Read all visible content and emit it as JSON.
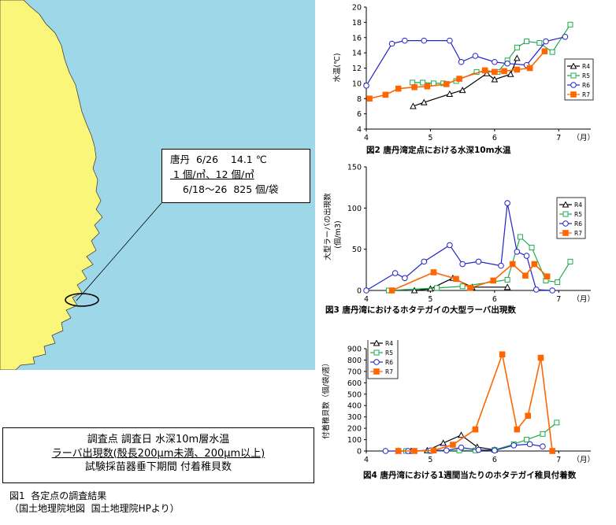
{
  "callout": {
    "line1": "唐丹  6/26    14.1 ℃",
    "line2": " 1 個/㎥、12 個/㎥",
    "line3": "    6/18～26  825 個/袋"
  },
  "legend_box": {
    "line1": "調査点   調査日   水深10m層水温",
    "line2": "ラーバ出現数(殻長200μm未満、200μm以上)",
    "line3": "試験採苗器垂下期間   付着稚貝数"
  },
  "fig1": {
    "caption": "図1  各定点の調査結果",
    "source": "（国土地理院地図  国土地理院HPより）"
  },
  "colors": {
    "sea": "#9ed8e8",
    "land": "#f9f67a",
    "R4": "#000000",
    "R5": "#1faa4a",
    "R6": "#2323c8",
    "R7": "#ff6600"
  },
  "chart_data": [
    {
      "type": "line",
      "caption": "図2  唐丹湾定点における水深10m水温",
      "ylabel": "水温(℃)",
      "xunit": "（月）",
      "xticks": [
        4,
        5,
        6,
        7
      ],
      "xlim": [
        4,
        7.5
      ],
      "yticks": [
        4,
        6,
        8,
        10,
        12,
        14,
        16,
        18,
        20
      ],
      "ylim": [
        4,
        20
      ],
      "legend_position": "right",
      "series": [
        {
          "name": "R4",
          "x": [
            4.73,
            4.9,
            5.3,
            5.5,
            5.88,
            6.0,
            6.25,
            6.35
          ],
          "y": [
            7.0,
            7.5,
            8.6,
            9.1,
            11.3,
            10.5,
            11.2,
            13.3
          ]
        },
        {
          "name": "R5",
          "x": [
            4.72,
            4.88,
            5.05,
            5.2,
            5.4,
            5.72,
            6.05,
            6.2,
            6.35,
            6.5,
            6.7,
            6.9,
            7.18
          ],
          "y": [
            10.1,
            10.1,
            10.0,
            10.0,
            10.3,
            11.5,
            11.5,
            13.0,
            14.7,
            15.5,
            15.3,
            14.1,
            17.7
          ]
        },
        {
          "name": "R6",
          "x": [
            4.0,
            4.4,
            4.6,
            4.9,
            5.3,
            5.48,
            5.7,
            6.0,
            6.2,
            6.5,
            6.8,
            7.1
          ],
          "y": [
            9.7,
            15.2,
            15.6,
            15.6,
            15.6,
            12.8,
            13.6,
            12.8,
            12.6,
            12.4,
            15.5,
            16.1
          ]
        },
        {
          "name": "R7",
          "x": [
            4.05,
            4.3,
            4.5,
            4.75,
            4.95,
            5.25,
            5.45,
            5.85,
            6.0,
            6.15,
            6.35,
            6.55,
            6.78
          ],
          "y": [
            8.0,
            8.5,
            9.3,
            9.5,
            9.6,
            9.9,
            10.6,
            11.7,
            11.5,
            11.6,
            11.8,
            12.0,
            14.2
          ]
        }
      ]
    },
    {
      "type": "line",
      "caption": "図3  唐丹湾におけるホタテガイの大型ラーバ出現数",
      "ylabel": "大型ラーバの出現数",
      "yunit": "(個/m3)",
      "xunit": "（月）",
      "xticks": [
        4,
        5,
        6,
        7
      ],
      "xlim": [
        4,
        7.5
      ],
      "yticks": [
        0,
        50,
        100,
        150
      ],
      "ylim": [
        0,
        150
      ],
      "legend_position": "top-right",
      "series": [
        {
          "name": "R4",
          "x": [
            4.75,
            5.0,
            5.35,
            5.65,
            6.2
          ],
          "y": [
            0,
            2,
            15,
            4,
            4
          ]
        },
        {
          "name": "R5",
          "x": [
            4.35,
            5.1,
            5.5,
            6.2,
            6.4,
            6.58,
            6.8,
            6.98,
            7.18
          ],
          "y": [
            0,
            3,
            5,
            13,
            65,
            52,
            12,
            10,
            35
          ]
        },
        {
          "name": "R6",
          "x": [
            4.0,
            4.45,
            4.6,
            4.9,
            5.3,
            5.5,
            5.75,
            6.1,
            6.2,
            6.35,
            6.5,
            6.65,
            6.9
          ],
          "y": [
            0,
            21,
            15,
            35,
            55,
            32,
            35,
            30,
            106,
            47,
            42,
            1,
            0
          ]
        },
        {
          "name": "R7",
          "x": [
            4.4,
            5.05,
            5.4,
            5.62,
            5.98,
            6.28,
            6.48,
            6.62,
            6.82
          ],
          "y": [
            0,
            22,
            14,
            3,
            12,
            32,
            18,
            32,
            17
          ]
        }
      ]
    },
    {
      "type": "line",
      "caption": "図4  唐丹湾における1週間当たりのホタテガイ稚貝付着数",
      "ylabel": "付着稚貝数（個/袋/週）",
      "xunit": "（月）",
      "xticks": [
        4,
        5,
        6,
        7
      ],
      "xlim": [
        4,
        7.5
      ],
      "yticks": [
        0,
        100,
        200,
        300,
        400,
        500,
        600,
        700,
        800,
        900
      ],
      "ylim": [
        0,
        900
      ],
      "legend_position": "top-left",
      "series": [
        {
          "name": "R4",
          "x": [
            4.5,
            4.7,
            4.95,
            5.2,
            5.48,
            5.73,
            6.0
          ],
          "y": [
            0,
            0,
            5,
            70,
            140,
            35,
            10
          ]
        },
        {
          "name": "R5",
          "x": [
            4.62,
            5.0,
            5.45,
            5.7,
            6.0,
            6.3,
            6.5,
            6.75,
            6.97
          ],
          "y": [
            0,
            0,
            5,
            5,
            10,
            60,
            100,
            150,
            250
          ]
        },
        {
          "name": "R6",
          "x": [
            4.3,
            4.65,
            5.0,
            5.25,
            5.48,
            5.75,
            6.0,
            6.3,
            6.55,
            6.75
          ],
          "y": [
            0,
            0,
            5,
            5,
            30,
            10,
            5,
            50,
            60,
            40
          ]
        },
        {
          "name": "R7",
          "x": [
            4.5,
            4.75,
            5.05,
            5.35,
            5.7,
            6.12,
            6.35,
            6.52,
            6.72,
            6.9
          ],
          "y": [
            0,
            0,
            5,
            55,
            190,
            850,
            190,
            310,
            820,
            0
          ]
        }
      ]
    }
  ]
}
